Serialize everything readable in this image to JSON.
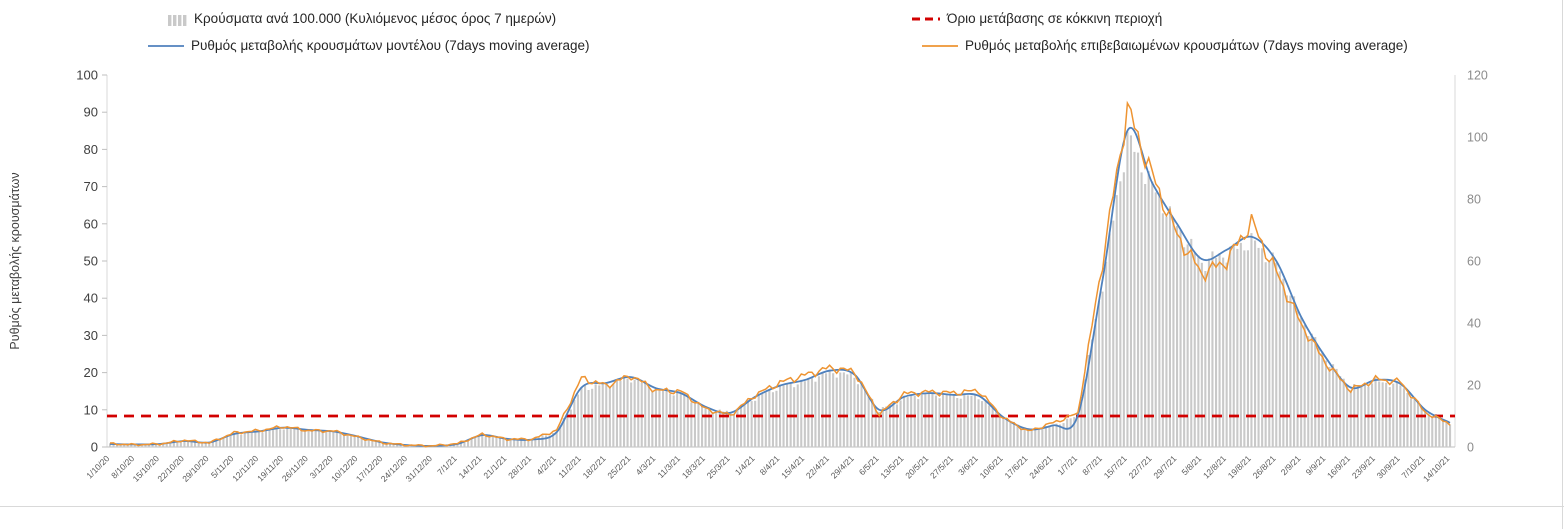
{
  "chart_data": {
    "type": "line",
    "title": "",
    "ylabel_left": "Ρυθμός μεταβολής κρουσμάτων",
    "ylim_left": [
      0,
      100
    ],
    "ylim_right": [
      0,
      120
    ],
    "y_ticks_left": [
      0,
      10,
      20,
      30,
      40,
      50,
      60,
      70,
      80,
      90,
      100
    ],
    "y_ticks_right": [
      0,
      20,
      40,
      60,
      80,
      100,
      120
    ],
    "grid": false,
    "legend_position": "top",
    "x": [
      "1/10/20",
      "8/10/20",
      "15/10/20",
      "22/10/20",
      "29/10/20",
      "5/11/20",
      "12/11/20",
      "19/11/20",
      "26/11/20",
      "3/12/20",
      "10/12/20",
      "17/12/20",
      "24/12/20",
      "31/12/20",
      "7/1/21",
      "14/1/21",
      "21/1/21",
      "28/1/21",
      "4/2/21",
      "11/2/21",
      "18/2/21",
      "25/2/21",
      "4/3/21",
      "11/3/21",
      "18/3/21",
      "25/3/21",
      "1/4/21",
      "8/4/21",
      "15/4/21",
      "22/4/21",
      "29/4/21",
      "6/5/21",
      "13/5/21",
      "20/5/21",
      "27/5/21",
      "3/6/21",
      "10/6/21",
      "17/6/21",
      "24/6/21",
      "1/7/21",
      "8/7/21",
      "15/7/21",
      "22/7/21",
      "29/7/21",
      "5/8/21",
      "12/8/21",
      "19/8/21",
      "26/8/21",
      "2/9/21",
      "9/9/21",
      "16/9/21",
      "23/9/21",
      "30/9/21",
      "7/10/21",
      "14/10/21"
    ],
    "series": [
      {
        "name": "Κρούσματα ανά 100.000 (Κυλιόμενος μέσος όρος 7 ημερών)",
        "type": "bar",
        "axis": "right",
        "color": "#c9c9c9",
        "values": [
          1.0,
          0.8,
          0.9,
          1.9,
          1.4,
          4.1,
          5.0,
          6.1,
          5.4,
          5.0,
          3.3,
          1.4,
          0.6,
          0.4,
          1.0,
          3.8,
          2.6,
          2.4,
          4.8,
          18.9,
          20.3,
          22.2,
          18.6,
          17.1,
          12.7,
          10.9,
          15.9,
          19.5,
          21.2,
          24.2,
          23.0,
          11.8,
          15.9,
          17.1,
          16.5,
          16.3,
          9.4,
          5.7,
          6.8,
          10.0,
          53.0,
          100.0,
          84.0,
          71.0,
          59.5,
          62.5,
          66.5,
          59.0,
          41.5,
          28.5,
          19.0,
          21.2,
          20.0,
          11.8,
          7.7
        ]
      },
      {
        "name": "Ρυθμός μεταβολής κρουσμάτων μοντέλου (7days moving average)",
        "type": "line",
        "axis": "left",
        "color": "#4f81bd",
        "values": [
          0.8,
          0.7,
          0.8,
          1.6,
          1.2,
          3.5,
          4.2,
          5.2,
          4.6,
          4.2,
          2.8,
          1.2,
          0.5,
          0.3,
          0.8,
          3.2,
          2.2,
          2.0,
          4.0,
          16.0,
          17.2,
          18.8,
          15.8,
          14.5,
          10.8,
          9.2,
          13.5,
          16.5,
          18.0,
          20.5,
          19.5,
          10.0,
          13.5,
          14.5,
          14.0,
          13.8,
          8.0,
          4.8,
          5.8,
          8.5,
          45.0,
          85.0,
          71.0,
          60.0,
          50.5,
          53.0,
          56.5,
          50.0,
          35.0,
          24.0,
          16.0,
          18.0,
          17.0,
          10.0,
          6.5
        ]
      },
      {
        "name": "Ρυθμός μεταβολής επιβεβαιωμένων κρουσμάτων (7days moving average)",
        "type": "line",
        "axis": "left",
        "color": "#ee9432",
        "values": [
          0.9,
          0.6,
          0.8,
          1.8,
          1.1,
          3.8,
          4.4,
          5.5,
          4.4,
          4.3,
          2.6,
          1.1,
          0.5,
          0.3,
          0.9,
          3.4,
          2.1,
          2.1,
          4.5,
          18.5,
          16.5,
          19.2,
          15.2,
          15.0,
          10.2,
          8.6,
          14.0,
          17.3,
          19.3,
          21.3,
          20.3,
          8.8,
          14.3,
          14.8,
          14.5,
          15.2,
          7.8,
          4.2,
          6.5,
          9.0,
          50.0,
          91.0,
          73.0,
          57.0,
          46.5,
          50.0,
          60.5,
          47.0,
          33.0,
          22.5,
          15.3,
          18.2,
          17.5,
          9.3,
          6.2
        ]
      },
      {
        "name": "Όριο μετάβασης σε κόκκινη περιοχή",
        "type": "threshold",
        "axis": "right",
        "color": "#d20000",
        "value": 10
      }
    ]
  }
}
